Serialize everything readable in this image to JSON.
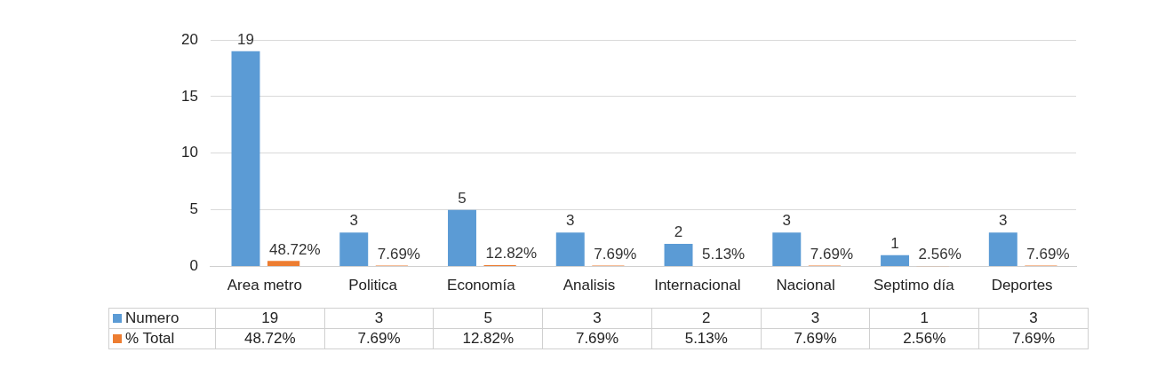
{
  "chart_data": {
    "type": "bar",
    "categories": [
      "Area metro",
      "Politica",
      "Economía",
      "Analisis",
      "Internacional",
      "Nacional",
      "Septimo día",
      "Deportes"
    ],
    "series": [
      {
        "name": "Numero",
        "color": "#5b9bd5",
        "values": [
          19,
          3,
          5,
          3,
          2,
          3,
          1,
          3
        ],
        "value_labels": [
          "19",
          "3",
          "5",
          "3",
          "2",
          "3",
          "1",
          "3"
        ]
      },
      {
        "name": "% Total",
        "color": "#ed7d31",
        "values": [
          0.4872,
          0.0769,
          0.1282,
          0.0769,
          0.0513,
          0.0769,
          0.0256,
          0.0769
        ],
        "value_labels": [
          "48.72%",
          "7.69%",
          "12.82%",
          "7.69%",
          "5.13%",
          "7.69%",
          "2.56%",
          "7.69%"
        ]
      }
    ],
    "ylim": [
      0,
      20
    ],
    "yticks": [
      0,
      5,
      10,
      15,
      20
    ],
    "grid": "y",
    "legend": "bottom"
  }
}
